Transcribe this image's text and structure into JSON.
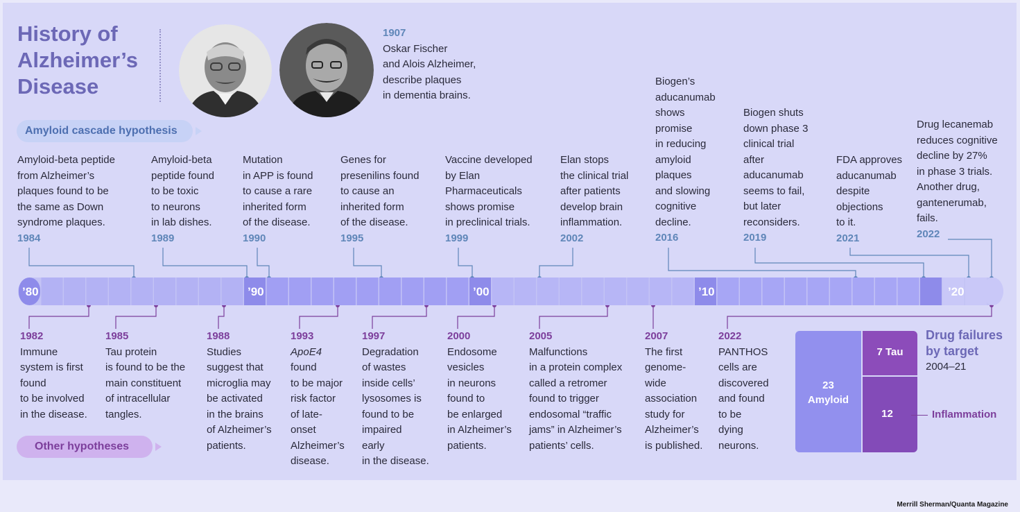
{
  "title": [
    "History of",
    "Alzheimer’s",
    "Disease"
  ],
  "hypotheses": {
    "amyloid": "Amyloid cascade hypothesis",
    "other": "Other hypotheses"
  },
  "intro": {
    "year": "1907",
    "text": "Oskar Fischer\nand Alois Alzheimer,\ndescribe plaques\n in dementia brains."
  },
  "decades": [
    "’80",
    "’90",
    "’00",
    "’10",
    "’20"
  ],
  "events_above": [
    {
      "year": "1984",
      "text": "Amyloid-beta peptide\nfrom Alzheimer’s\nplaques found to be\nthe same as Down\nsyndrome plaques."
    },
    {
      "year": "1989",
      "text": "Amyloid-beta\npeptide found\nto be toxic\nto neurons\nin lab dishes."
    },
    {
      "year": "1990",
      "text": "Mutation\nin APP is found\nto cause a rare\ninherited form\nof the disease."
    },
    {
      "year": "1995",
      "text": "Genes for\npresenilins found\nto cause an\ninherited form\nof the disease."
    },
    {
      "year": "1999",
      "text": "Vaccine developed\nby Elan\nPharmaceuticals\nshows promise\nin preclinical trials."
    },
    {
      "year": "2002",
      "text": "Elan stops\nthe clinical trial\nafter patients\ndevelop brain\ninflammation."
    },
    {
      "year": "2016",
      "text": "Biogen’s\naducanumab\nshows\npromise\nin reducing\namyloid\nplaques\nand slowing\ncognitive\ndecline."
    },
    {
      "year": "2019",
      "text": "Biogen shuts\ndown phase 3\nclinical trial\nafter\naducanumab\nseems to fail,\nbut later\nreconsiders."
    },
    {
      "year": "2021",
      "text": "FDA approves\naducanumab\ndespite\nobjections\nto it."
    },
    {
      "year": "2022",
      "text": "Drug lecanemab\nreduces cognitive\ndecline by 27%\nin phase 3 trials.\nAnother drug,\ngantenerumab,\nfails."
    }
  ],
  "events_below": [
    {
      "year": "1982",
      "text": "Immune\nsystem is first\nfound\nto be involved\nin the disease."
    },
    {
      "year": "1985",
      "text": "Tau protein\nis found to be the\nmain constituent\nof intracellular\ntangles."
    },
    {
      "year": "1988",
      "text": "Studies\nsuggest that\nmicroglia may\nbe activated\nin the brains\nof Alzheimer’s\npatients."
    },
    {
      "year": "1993",
      "italic": "ApoE4",
      "text": "found\nto be major\nrisk factor\nof late-\nonset\nAlzheimer’s\ndisease."
    },
    {
      "year": "1997",
      "text": "Degradation\nof wastes\ninside cells’\nlysosomes is\nfound to be\nimpaired\nearly\nin the disease."
    },
    {
      "year": "2000",
      "text": "Endosome\nvesicles\nin neurons\nfound to\nbe enlarged\nin Alzheimer’s\npatients."
    },
    {
      "year": "2005",
      "text": "Malfunctions\nin a protein complex\ncalled a retromer\nfound to trigger\nendosomal “traffic\njams” in Alzheimer’s\npatients’ cells."
    },
    {
      "year": "2007",
      "text": "The first\ngenome-\nwide\nassociation\nstudy for\nAlzheimer’s\nis published."
    },
    {
      "year": "2022",
      "text": "PANTHOS\ncells are\ndiscovered\nand found\nto be\ndying\nneurons."
    }
  ],
  "drug_failures": {
    "title": [
      "Drug failures",
      "by target"
    ],
    "subtitle": "2004–21",
    "amyloid_value": "23",
    "amyloid_label": "Amyloid",
    "tau_label": "7 Tau",
    "inflammation_value": "12",
    "inflammation_label": "Inflammation"
  },
  "chart_data": {
    "type": "treemap",
    "title": "Drug failures by target",
    "subtitle": "2004–21",
    "categories": [
      "Amyloid",
      "Tau",
      "Inflammation"
    ],
    "values": [
      23,
      7,
      12
    ]
  },
  "colors": {
    "amyloid_line": "#5f86b8",
    "other_line": "#7c3e9b",
    "amyloid_bar": "#9290ee",
    "tau_bar": "#8c4cba",
    "inflammation_bar": "#834bb8"
  },
  "credit": "Merrill Sherman/Quanta Magazine"
}
